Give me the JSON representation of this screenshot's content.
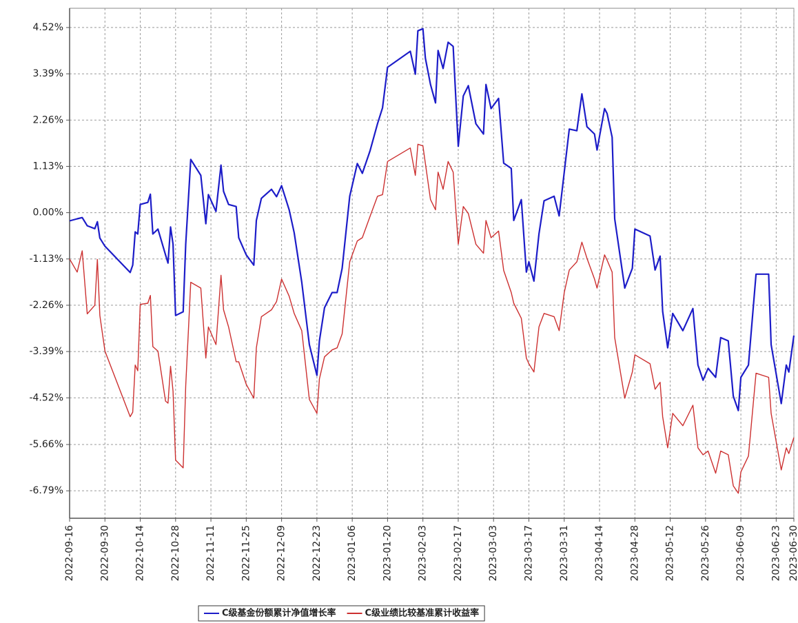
{
  "chart_data": {
    "type": "line",
    "x": [
      "2022-09-16",
      "2022-09-19",
      "2022-09-21",
      "2022-09-23",
      "2022-09-26",
      "2022-09-27",
      "2022-09-28",
      "2022-09-30",
      "2022-10-10",
      "2022-10-11",
      "2022-10-12",
      "2022-10-13",
      "2022-10-14",
      "2022-10-17",
      "2022-10-18",
      "2022-10-19",
      "2022-10-21",
      "2022-10-24",
      "2022-10-25",
      "2022-10-26",
      "2022-10-27",
      "2022-10-28",
      "2022-10-31",
      "2022-11-01",
      "2022-11-03",
      "2022-11-07",
      "2022-11-09",
      "2022-11-10",
      "2022-11-13",
      "2022-11-15",
      "2022-11-16",
      "2022-11-18",
      "2022-11-21",
      "2022-11-22",
      "2022-11-25",
      "2022-11-28",
      "2022-11-29",
      "2022-12-01",
      "2022-12-05",
      "2022-12-07",
      "2022-12-09",
      "2022-12-12",
      "2022-12-14",
      "2022-12-17",
      "2022-12-20",
      "2022-12-23",
      "2022-12-24",
      "2022-12-26",
      "2022-12-29",
      "2022-12-31",
      "2023-01-02",
      "2023-01-05",
      "2023-01-08",
      "2023-01-10",
      "2023-01-13",
      "2023-01-16",
      "2023-01-18",
      "2023-01-20",
      "2023-01-29",
      "2023-01-31",
      "2023-02-01",
      "2023-02-03",
      "2023-02-04",
      "2023-02-06",
      "2023-02-08",
      "2023-02-09",
      "2023-02-11",
      "2023-02-13",
      "2023-02-15",
      "2023-02-17",
      "2023-02-19",
      "2023-02-21",
      "2023-02-24",
      "2023-02-27",
      "2023-02-28",
      "2023-03-02",
      "2023-03-05",
      "2023-03-07",
      "2023-03-10",
      "2023-03-11",
      "2023-03-14",
      "2023-03-16",
      "2023-03-17",
      "2023-03-19",
      "2023-03-21",
      "2023-03-23",
      "2023-03-27",
      "2023-03-29",
      "2023-03-31",
      "2023-04-02",
      "2023-04-05",
      "2023-04-07",
      "2023-04-09",
      "2023-04-12",
      "2023-04-13",
      "2023-04-16",
      "2023-04-17",
      "2023-04-19",
      "2023-04-20",
      "2023-04-24",
      "2023-04-27",
      "2023-04-28",
      "2023-05-04",
      "2023-05-06",
      "2023-05-08",
      "2023-05-09",
      "2023-05-11",
      "2023-05-13",
      "2023-05-17",
      "2023-05-21",
      "2023-05-23",
      "2023-05-25",
      "2023-05-27",
      "2023-05-30",
      "2023-06-01",
      "2023-06-04",
      "2023-06-06",
      "2023-06-08",
      "2023-06-09",
      "2023-06-12",
      "2023-06-15",
      "2023-06-20",
      "2023-06-21",
      "2023-06-25",
      "2023-06-27",
      "2023-06-28",
      "2023-06-30"
    ],
    "series": [
      {
        "name": "C级基金份额累计净值增长率",
        "color": "#1c1cc8",
        "width": 2.2,
        "values": [
          -0.2,
          -0.15,
          -0.12,
          -0.32,
          -0.39,
          -0.22,
          -0.62,
          -0.82,
          -1.46,
          -1.28,
          -0.47,
          -0.52,
          0.2,
          0.25,
          0.45,
          -0.52,
          -0.4,
          -1.03,
          -1.23,
          -0.35,
          -0.77,
          -2.51,
          -2.42,
          -0.77,
          1.3,
          0.91,
          -0.27,
          0.44,
          0.03,
          1.16,
          0.52,
          0.2,
          0.15,
          -0.61,
          -1.03,
          -1.28,
          -0.19,
          0.35,
          0.57,
          0.39,
          0.66,
          0.07,
          -0.49,
          -1.7,
          -3.22,
          -3.97,
          -3.13,
          -2.32,
          -1.95,
          -1.95,
          -1.36,
          0.4,
          1.2,
          0.96,
          1.5,
          2.17,
          2.56,
          3.55,
          3.94,
          3.38,
          4.44,
          4.49,
          3.77,
          3.13,
          2.68,
          3.96,
          3.52,
          4.16,
          4.06,
          1.62,
          2.85,
          3.1,
          2.17,
          1.92,
          3.13,
          2.54,
          2.79,
          1.21,
          1.08,
          -0.19,
          0.32,
          -1.45,
          -1.2,
          -1.67,
          -0.52,
          0.29,
          0.4,
          -0.08,
          0.99,
          2.04,
          2.0,
          2.9,
          2.1,
          1.92,
          1.53,
          2.54,
          2.42,
          1.84,
          -0.15,
          -1.84,
          -1.36,
          -0.4,
          -0.57,
          -1.4,
          -1.06,
          -2.41,
          -3.3,
          -2.46,
          -2.88,
          -2.34,
          -3.72,
          -4.09,
          -3.8,
          -4.02,
          -3.05,
          -3.13,
          -4.48,
          -4.83,
          -4.02,
          -3.72,
          -1.5,
          -1.5,
          -3.22,
          -4.66,
          -3.72,
          -3.89,
          -3.0
        ]
      },
      {
        "name": "C级业绩比较基准累计收益率",
        "color": "#cc3030",
        "width": 1.4,
        "values": [
          -1.13,
          -1.45,
          -0.93,
          -2.47,
          -2.26,
          -1.14,
          -2.51,
          -3.38,
          -4.98,
          -4.87,
          -3.72,
          -3.86,
          -2.24,
          -2.21,
          -2.02,
          -3.27,
          -3.38,
          -4.6,
          -4.65,
          -3.75,
          -4.36,
          -6.04,
          -6.23,
          -4.23,
          -1.7,
          -1.84,
          -3.55,
          -2.79,
          -3.22,
          -1.53,
          -2.37,
          -2.79,
          -3.64,
          -3.64,
          -4.19,
          -4.53,
          -3.3,
          -2.54,
          -2.37,
          -2.17,
          -1.62,
          -2.04,
          -2.46,
          -2.88,
          -4.56,
          -4.9,
          -4.06,
          -3.52,
          -3.35,
          -3.3,
          -2.96,
          -1.2,
          -0.69,
          -0.61,
          -0.1,
          0.4,
          0.44,
          1.25,
          1.58,
          0.91,
          1.67,
          1.63,
          1.2,
          0.32,
          0.07,
          0.99,
          0.57,
          1.25,
          0.99,
          -0.77,
          0.15,
          -0.02,
          -0.77,
          -0.99,
          -0.19,
          -0.61,
          -0.45,
          -1.41,
          -1.95,
          -2.21,
          -2.58,
          -3.55,
          -3.69,
          -3.89,
          -2.79,
          -2.46,
          -2.54,
          -2.88,
          -1.95,
          -1.4,
          -1.2,
          -0.72,
          -1.11,
          -1.62,
          -1.84,
          -1.03,
          -1.16,
          -1.45,
          -3.05,
          -4.53,
          -3.89,
          -3.47,
          -3.69,
          -4.31,
          -4.14,
          -4.98,
          -5.74,
          -4.9,
          -5.2,
          -4.7,
          -5.74,
          -5.91,
          -5.82,
          -6.36,
          -5.82,
          -5.91,
          -6.67,
          -6.85,
          -6.33,
          -5.94,
          -3.92,
          -4.02,
          -4.9,
          -6.28,
          -5.74,
          -5.88,
          -5.49
        ]
      }
    ],
    "xlim": [
      "2022-09-16",
      "2023-06-30"
    ],
    "xticks": [
      "2022-09-16",
      "2022-09-30",
      "2022-10-14",
      "2022-10-28",
      "2022-11-11",
      "2022-11-25",
      "2022-12-09",
      "2022-12-23",
      "2023-01-06",
      "2023-01-20",
      "2023-02-03",
      "2023-02-17",
      "2023-03-03",
      "2023-03-17",
      "2023-03-31",
      "2023-04-14",
      "2023-04-28",
      "2023-05-12",
      "2023-05-26",
      "2023-06-09",
      "2023-06-23",
      "2023-06-30"
    ],
    "ylim": [
      -7.46,
      4.99
    ],
    "yticks": [
      {
        "value": 4.52,
        "label": "4.52%"
      },
      {
        "value": 3.39,
        "label": "3.39%"
      },
      {
        "value": 2.26,
        "label": "2.26%"
      },
      {
        "value": 1.13,
        "label": "1.13%"
      },
      {
        "value": 0,
        "label": "0.00%"
      },
      {
        "value": -1.13,
        "label": "-1.13%"
      },
      {
        "value": -2.26,
        "label": "-2.26%"
      },
      {
        "value": -3.39,
        "label": "-3.39%"
      },
      {
        "value": -4.52,
        "label": "-4.52%"
      },
      {
        "value": -5.66,
        "label": "-5.66%"
      },
      {
        "value": -6.79,
        "label": "-6.79%"
      }
    ],
    "grid": true,
    "legend": "bottom"
  }
}
